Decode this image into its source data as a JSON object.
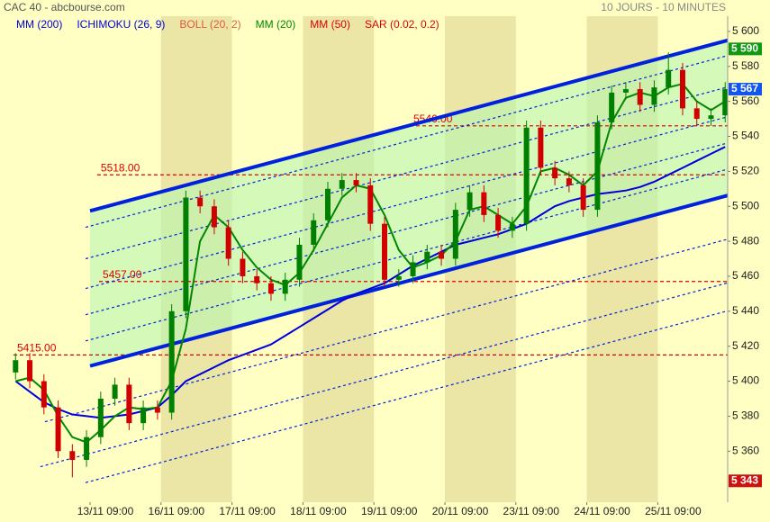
{
  "chart_data": {
    "type": "candlestick",
    "title": "CAC 40 - abcbourse.com",
    "subtitle": "10 JOURS - 10 MINUTES",
    "xlim": [
      -0.117,
      9.985
    ],
    "ylim": [
      5330.8,
      5608.7
    ],
    "xticks": [
      {
        "value": 1,
        "label": "13/11 09:00"
      },
      {
        "value": 2,
        "label": "16/11 09:00"
      },
      {
        "value": 3,
        "label": "17/11 09:00"
      },
      {
        "value": 4,
        "label": "18/11 09:00"
      },
      {
        "value": 5,
        "label": "19/11 09:00"
      },
      {
        "value": 6,
        "label": "20/11 09:00"
      },
      {
        "value": 7,
        "label": "23/11 09:00"
      },
      {
        "value": 8,
        "label": "24/11 09:00"
      },
      {
        "value": 9,
        "label": "25/11 09:00"
      }
    ],
    "yticks": [
      {
        "value": 5360,
        "label": "5 360"
      },
      {
        "value": 5380,
        "label": "5 380"
      },
      {
        "value": 5400,
        "label": "5 400"
      },
      {
        "value": 5420,
        "label": "5 420"
      },
      {
        "value": 5440,
        "label": "5 440"
      },
      {
        "value": 5460,
        "label": "5 460"
      },
      {
        "value": 5480,
        "label": "5 480"
      },
      {
        "value": 5500,
        "label": "5 500"
      },
      {
        "value": 5520,
        "label": "5 520"
      },
      {
        "value": 5540,
        "label": "5 540"
      },
      {
        "value": 5560,
        "label": "5 560"
      },
      {
        "value": 5580,
        "label": "5 580"
      },
      {
        "value": 5600,
        "label": "5 600"
      }
    ],
    "up_color": "#008000",
    "down_color": "#d00000",
    "x": [
      -0.05,
      0.15,
      0.35,
      0.55,
      0.75,
      0.95,
      1.15,
      1.35,
      1.55,
      1.75,
      1.95,
      2.15,
      2.35,
      2.55,
      2.75,
      2.95,
      3.15,
      3.35,
      3.55,
      3.75,
      3.95,
      4.15,
      4.35,
      4.55,
      4.75,
      4.95,
      5.15,
      5.35,
      5.55,
      5.75,
      5.95,
      6.15,
      6.35,
      6.55,
      6.75,
      6.95,
      7.15,
      7.35,
      7.55,
      7.75,
      7.95,
      8.15,
      8.35,
      8.55,
      8.75,
      8.95,
      9.15,
      9.35,
      9.55,
      9.75,
      9.95
    ],
    "open": [
      5405,
      5412,
      5400,
      5385,
      5360,
      5355,
      5368,
      5390,
      5398,
      5376,
      5385,
      5382,
      5440,
      5505,
      5500,
      5488,
      5470,
      5460,
      5456,
      5450,
      5458,
      5478,
      5492,
      5510,
      5515,
      5512,
      5490,
      5458,
      5460,
      5468,
      5474,
      5470,
      5498,
      5508,
      5495,
      5486,
      5490,
      5545,
      5522,
      5516,
      5512,
      5498,
      5548,
      5565,
      5567,
      5558,
      5568,
      5578,
      5556,
      5550,
      5552
    ],
    "high": [
      5416,
      5416,
      5404,
      5389,
      5364,
      5372,
      5394,
      5402,
      5402,
      5389,
      5389,
      5444,
      5509,
      5509,
      5504,
      5492,
      5474,
      5464,
      5460,
      5462,
      5482,
      5496,
      5514,
      5519,
      5519,
      5516,
      5494,
      5464,
      5472,
      5478,
      5478,
      5502,
      5512,
      5512,
      5499,
      5494,
      5549,
      5549,
      5526,
      5520,
      5516,
      5552,
      5569,
      5571,
      5571,
      5572,
      5588,
      5582,
      5560,
      5556,
      5571
    ],
    "low": [
      5401,
      5396,
      5381,
      5356,
      5345,
      5351,
      5364,
      5386,
      5372,
      5372,
      5378,
      5378,
      5436,
      5496,
      5484,
      5466,
      5456,
      5452,
      5446,
      5446,
      5454,
      5474,
      5488,
      5506,
      5508,
      5486,
      5454,
      5454,
      5456,
      5464,
      5466,
      5466,
      5494,
      5491,
      5482,
      5482,
      5486,
      5518,
      5512,
      5508,
      5494,
      5494,
      5544,
      5561,
      5554,
      5554,
      5564,
      5552,
      5546,
      5546,
      5548
    ],
    "close": [
      5412,
      5400,
      5385,
      5360,
      5355,
      5368,
      5390,
      5398,
      5376,
      5385,
      5382,
      5440,
      5505,
      5500,
      5488,
      5470,
      5460,
      5456,
      5450,
      5458,
      5478,
      5492,
      5510,
      5515,
      5512,
      5490,
      5458,
      5460,
      5468,
      5474,
      5470,
      5498,
      5508,
      5495,
      5486,
      5490,
      5545,
      5522,
      5516,
      5512,
      5498,
      5548,
      5565,
      5567,
      5558,
      5568,
      5578,
      5556,
      5550,
      5552,
      5567
    ],
    "series": [
      {
        "name": "MM (200)",
        "color": "#0000dd",
        "values": [
          5400,
          5394,
          5388,
          5384,
          5381,
          5380,
          5379,
          5380,
          5381,
          5383,
          5385,
          5392,
          5400,
          5404,
          5408,
          5412,
          5415,
          5418,
          5421,
          5426,
          5431,
          5436,
          5441,
          5446,
          5450,
          5453,
          5456,
          5461,
          5466,
          5470,
          5474,
          5478,
          5480,
          5482,
          5484,
          5487,
          5490,
          5495,
          5500,
          5503,
          5505,
          5507,
          5508,
          5509,
          5511,
          5514,
          5518,
          5522,
          5526,
          5530,
          5534
        ]
      },
      {
        "name": "ICHIMOKU (26, 9)",
        "color": "#0000dd"
      },
      {
        "name": "BOLL (20, 2)",
        "color": "#e05a3a"
      },
      {
        "name": "MM (20)",
        "color": "#008800",
        "values": [
          5400,
          5402,
          5395,
          5380,
          5368,
          5365,
          5372,
          5380,
          5385,
          5384,
          5385,
          5400,
          5430,
          5480,
          5495,
          5488,
          5475,
          5465,
          5458,
          5455,
          5462,
          5475,
          5490,
          5505,
          5512,
          5510,
          5495,
          5475,
          5465,
          5468,
          5472,
          5480,
          5498,
          5500,
          5495,
          5490,
          5500,
          5520,
          5522,
          5518,
          5512,
          5520,
          5548,
          5562,
          5565,
          5563,
          5568,
          5570,
          5560,
          5555,
          5560
        ]
      },
      {
        "name": "MM (50)",
        "color": "#dd0000"
      },
      {
        "name": "SAR (0.02, 0.2)",
        "color": "#dd0000"
      }
    ],
    "channel": [
      {
        "x": [
          1,
          9.985
        ],
        "y": [
          5497.4,
          5594.9
        ],
        "dash": false,
        "color": "#0022dd"
      },
      {
        "x": [
          1,
          9.985
        ],
        "y": [
          5408.7,
          5506.2
        ],
        "dash": false,
        "color": "#0022dd"
      },
      {
        "x": [
          0.937,
          9.985
        ],
        "y": [
          5423.0,
          5521.2
        ],
        "dash": true,
        "color": "#0022dd"
      },
      {
        "x": [
          0.937,
          9.985
        ],
        "y": [
          5438.0,
          5536.2
        ],
        "dash": true,
        "color": "#0022dd"
      },
      {
        "x": [
          0.937,
          9.985
        ],
        "y": [
          5453.0,
          5551.2
        ],
        "dash": true,
        "color": "#0022dd"
      },
      {
        "x": [
          0.937,
          9.985
        ],
        "y": [
          5470.0,
          5568.2
        ],
        "dash": true,
        "color": "#0022dd"
      },
      {
        "x": [
          0.937,
          9.985
        ],
        "y": [
          5488.0,
          5586.2
        ],
        "dash": true,
        "color": "#0022dd"
      },
      {
        "x": [
          0.365,
          9.985
        ],
        "y": [
          5376.8,
          5481.2
        ],
        "dash": true,
        "color": "#0022dd"
      },
      {
        "x": [
          0.3,
          9.985
        ],
        "y": [
          5351.1,
          5456.2
        ],
        "dash": true,
        "color": "#0022dd"
      },
      {
        "x": [
          0.937,
          9.985
        ],
        "y": [
          5342.0,
          5440.2
        ],
        "dash": true,
        "color": "#0022dd"
      }
    ],
    "levels": [
      {
        "value": 5546,
        "label": "5546.00",
        "x0": 5.505
      },
      {
        "value": 5518,
        "label": "5518.00",
        "x0": 1.1
      },
      {
        "value": 5457,
        "label": "5457.00",
        "x0": 1.127
      },
      {
        "value": 5415,
        "label": "5415.00",
        "x0": -0.079
      }
    ],
    "level_color": "#dd0000",
    "price_tags": [
      {
        "value": 5590,
        "label": "5 590",
        "color": "#119911"
      },
      {
        "value": 5567,
        "label": "5 567",
        "color": "#1155ee"
      },
      {
        "value": 5343,
        "label": "5 343",
        "color": "#cc1111"
      }
    ]
  }
}
